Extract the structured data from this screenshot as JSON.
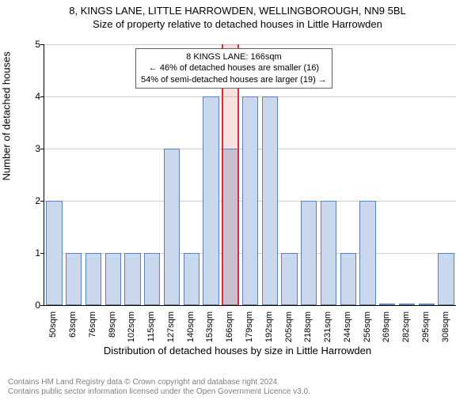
{
  "title": "8, KINGS LANE, LITTLE HARROWDEN, WELLINGBOROUGH, NN9 5BL",
  "subtitle": "Size of property relative to detached houses in Little Harrowden",
  "y_label": "Number of detached houses",
  "x_label": "Distribution of detached houses by size in Little Harrowden",
  "footer_line1": "Contains HM Land Registry data © Crown copyright and database right 2024.",
  "footer_line2": "Contains public sector information licensed under the Open Government Licence v3.0.",
  "annotation": {
    "line1": "8 KINGS LANE: 166sqm",
    "line2": "← 46% of detached houses are smaller (16)",
    "line3": "54% of semi-detached houses are larger (19) →"
  },
  "chart": {
    "type": "bar",
    "ylim": [
      0,
      5
    ],
    "yticks": [
      0,
      1,
      2,
      3,
      4,
      5
    ],
    "background_color": "#ffffff",
    "grid_color": "#d0d0d0",
    "bar_color": "#c9d8ec",
    "bar_border_color": "#6080b0",
    "highlight_color": "#cc3333",
    "highlight_index": 9,
    "bar_width": 0.82,
    "categories": [
      "50sqm",
      "63sqm",
      "76sqm",
      "89sqm",
      "102sqm",
      "115sqm",
      "127sqm",
      "140sqm",
      "153sqm",
      "166sqm",
      "179sqm",
      "192sqm",
      "205sqm",
      "218sqm",
      "231sqm",
      "244sqm",
      "256sqm",
      "269sqm",
      "282sqm",
      "295sqm",
      "308sqm"
    ],
    "values": [
      2,
      1,
      1,
      1,
      1,
      1,
      3,
      1,
      4,
      3,
      4,
      4,
      1,
      2,
      2,
      1,
      2,
      0,
      0,
      0,
      1
    ]
  }
}
